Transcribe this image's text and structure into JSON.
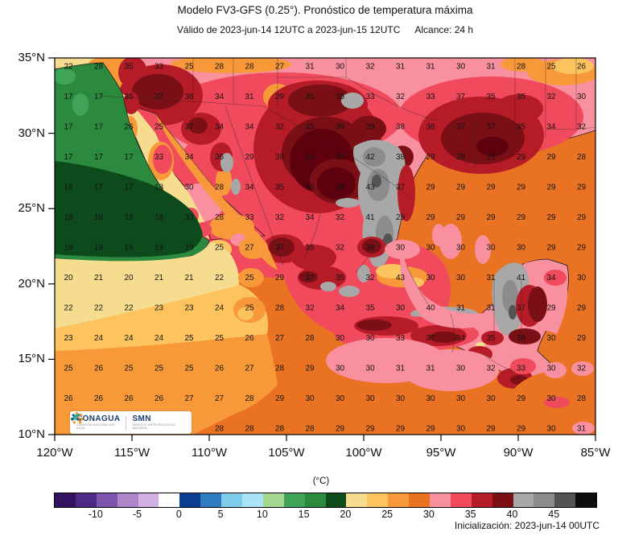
{
  "header": {
    "title": "Modelo FV3-GFS (0.25°). Pronóstico de temperatura máxima",
    "valid_text": "Válido de 2023-jun-14 12UTC a 2023-jun-15 12UTC",
    "reach_text": "Alcance: 24 h"
  },
  "map": {
    "lat_labels": [
      "35°N",
      "30°N",
      "25°N",
      "20°N",
      "15°N",
      "10°N"
    ],
    "lon_labels": [
      "120°W",
      "115°W",
      "110°W",
      "105°W",
      "100°W",
      "95°W",
      "90°W",
      "85°W"
    ],
    "grid_values": [
      [
        22,
        28,
        35,
        33,
        25,
        28,
        28,
        27,
        31,
        30,
        32,
        31,
        31,
        30,
        31,
        28,
        25,
        26
      ],
      [
        17,
        17,
        35,
        37,
        36,
        34,
        31,
        29,
        35,
        35,
        33,
        32,
        33,
        37,
        35,
        35,
        32,
        30
      ],
      [
        17,
        17,
        26,
        25,
        37,
        34,
        34,
        32,
        35,
        39,
        39,
        38,
        36,
        37,
        37,
        35,
        34,
        32
      ],
      [
        17,
        17,
        17,
        33,
        34,
        36,
        29,
        39,
        36,
        39,
        42,
        38,
        29,
        28,
        29,
        29,
        29,
        28
      ],
      [
        18,
        17,
        17,
        18,
        30,
        28,
        34,
        35,
        36,
        38,
        43,
        37,
        29,
        29,
        29,
        29,
        29,
        29
      ],
      [
        18,
        18,
        18,
        18,
        33,
        28,
        33,
        32,
        34,
        32,
        41,
        29,
        29,
        29,
        29,
        29,
        29,
        29
      ],
      [
        19,
        19,
        19,
        19,
        19,
        25,
        27,
        37,
        35,
        32,
        38,
        30,
        30,
        30,
        30,
        30,
        29,
        29
      ],
      [
        20,
        21,
        20,
        21,
        21,
        22,
        25,
        29,
        37,
        35,
        32,
        43,
        30,
        30,
        31,
        41,
        34,
        30
      ],
      [
        22,
        22,
        22,
        23,
        23,
        24,
        25,
        28,
        32,
        34,
        35,
        30,
        40,
        31,
        31,
        37,
        29,
        29
      ],
      [
        23,
        24,
        24,
        24,
        25,
        25,
        26,
        27,
        28,
        30,
        30,
        33,
        37,
        34,
        35,
        39,
        30,
        29
      ],
      [
        25,
        26,
        25,
        25,
        25,
        26,
        27,
        28,
        29,
        30,
        30,
        31,
        31,
        30,
        32,
        33,
        30,
        32
      ],
      [
        26,
        26,
        26,
        26,
        27,
        27,
        28,
        29,
        30,
        30,
        30,
        30,
        30,
        30,
        30,
        29,
        30,
        28
      ],
      [
        null,
        null,
        null,
        null,
        null,
        28,
        28,
        28,
        28,
        29,
        29,
        29,
        29,
        30,
        29,
        29,
        30,
        31
      ]
    ]
  },
  "colorbar": {
    "unit_label": "(°C)",
    "tick_labels": [
      "-10",
      "-5",
      "0",
      "5",
      "10",
      "15",
      "20",
      "25",
      "30",
      "35",
      "40",
      "45"
    ],
    "colors": [
      "#33125f",
      "#4c2a85",
      "#7e55ad",
      "#ae85c8",
      "#cfb0e0",
      "#ffffff",
      "#0b3d91",
      "#2f7bc0",
      "#7ecbea",
      "#a8e4f5",
      "#a4d78f",
      "#3fa457",
      "#2b8a3e",
      "#0d4a1c",
      "#f5dc8e",
      "#fdc35f",
      "#f89939",
      "#ea7223",
      "#f8909f",
      "#f04a5c",
      "#b51c27",
      "#7a0f16",
      "#a8a8a8",
      "#8c8c8c",
      "#545454",
      "#0d0d0d"
    ]
  },
  "branding": {
    "conagua_name": "CONAGUA",
    "conagua_sub": "COMISIÓN NACIONAL DEL AGUA",
    "smn_name": "SMN",
    "smn_sub": "SERVICIO METEOROLÓGICO NACIONAL"
  },
  "footer": {
    "init_text": "Inicialización: 2023-jun-14 00UTC"
  }
}
